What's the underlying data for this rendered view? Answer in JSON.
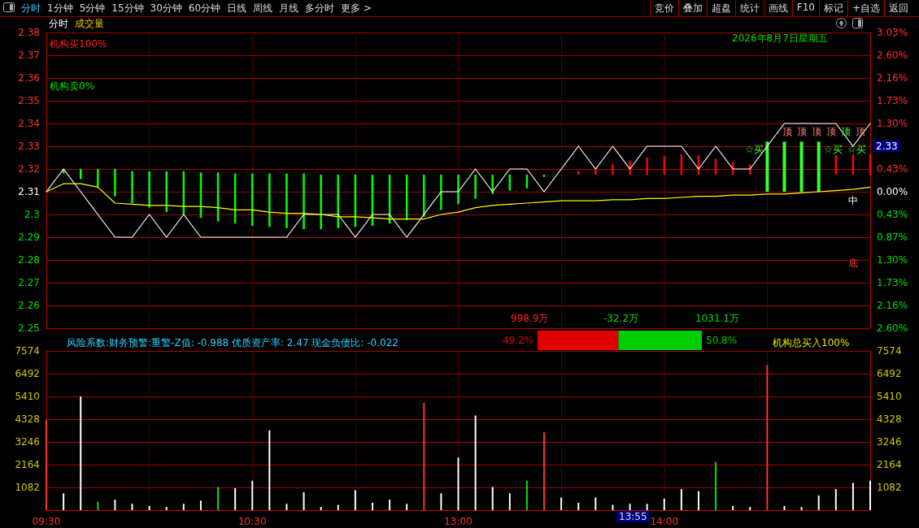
{
  "chart_data": [
    {
      "type": "line",
      "categories": [
        null,
        null,
        null,
        null,
        null,
        null,
        null,
        null,
        null,
        null,
        null,
        null,
        null,
        null,
        null,
        null,
        null,
        null,
        null,
        null,
        null,
        null,
        null,
        null,
        null,
        null,
        null,
        null,
        null,
        null,
        null,
        null,
        null,
        null,
        null,
        null,
        null,
        null,
        null,
        null,
        null,
        null,
        null,
        null,
        null,
        null,
        null,
        null,
        null
      ],
      "ylim": [
        2.25,
        2.38
      ],
      "yticks": [
        2.25,
        2.26,
        2.27,
        2.28,
        2.29,
        2.3,
        2.31,
        2.32,
        2.33,
        2.34,
        2.35,
        2.36,
        2.37,
        2.38
      ],
      "y2lim": [
        -2.6,
        3.03
      ],
      "y2ticks": [
        {
          "value": -2.6,
          "label": "2.60%"
        },
        {
          "value": -2.16,
          "label": "2.16%"
        },
        {
          "value": -1.73,
          "label": "1.73%"
        },
        {
          "value": -1.3,
          "label": "1.30%"
        },
        {
          "value": -0.87,
          "label": "0.87%"
        },
        {
          "value": -0.43,
          "label": "0.43%"
        },
        {
          "value": 0,
          "label": "0.00%"
        },
        {
          "value": 0.43,
          "label": "0.43%"
        },
        {
          "value": 0.87,
          "label": null
        },
        {
          "value": 1.3,
          "label": "1.30%"
        },
        {
          "value": 1.73,
          "label": "1.73%"
        },
        {
          "value": 2.16,
          "label": "2.16%"
        },
        {
          "value": 2.6,
          "label": "2.60%"
        },
        {
          "value": 3.03,
          "label": "3.03%"
        }
      ],
      "grid": true,
      "tick_labels": "y",
      "series": [
        {
          "type": "bar",
          "base": [
            null,
            2.318,
            2.3155,
            2.312,
            2.308,
            2.305,
            2.303,
            2.301,
            2.3,
            2.2985,
            2.297,
            2.296,
            2.295,
            2.2945,
            2.294,
            2.2935,
            2.2935,
            2.294,
            2.2945,
            2.295,
            2.296,
            2.2975,
            2.299,
            2.302,
            2.3045,
            2.307,
            2.309,
            2.3105,
            2.3115,
            2.3165,
            null,
            2.3175,
            2.3175,
            2.3175,
            2.3175,
            2.3175,
            2.3175,
            2.3175,
            2.3175,
            2.3175,
            2.3175,
            2.3175,
            null,
            null,
            null,
            null,
            2.3175,
            2.3175,
            2.3175
          ],
          "values": [
            null,
            0.002,
            0.0045,
            0.008,
            0.012,
            0.014,
            0.016,
            0.018,
            0.019,
            0.02,
            0.0215,
            0.022,
            0.023,
            0.0235,
            0.024,
            0.0245,
            0.024,
            0.0235,
            0.023,
            0.0225,
            0.0215,
            0.02,
            0.0185,
            0.0155,
            0.013,
            0.0105,
            0.0085,
            0.007,
            0.006,
            0.001,
            null,
            0.0015,
            0.003,
            0.0045,
            0.006,
            0.0075,
            0.008,
            0.009,
            0.0085,
            0.007,
            0.0055,
            0.0045,
            null,
            null,
            null,
            null,
            0.0085,
            0.009,
            0.009
          ],
          "colors": [
            "#00ff00",
            "#00ff00",
            "#00ff00",
            "#00ff00",
            "#00ff00",
            "#00ff00",
            "#00ff00",
            "#00ff00",
            "#00ff00",
            "#00ff00",
            "#00ff00",
            "#00ff00",
            "#00ff00",
            "#00ff00",
            "#00ff00",
            "#00ff00",
            "#00ff00",
            "#00ff00",
            "#00ff00",
            "#00ff00",
            "#00ff00",
            "#00ff00",
            "#00ff00",
            "#00ff00",
            "#00ff00",
            "#00ff00",
            "#00ff00",
            "#00ff00",
            "#00ff00",
            "#00ff00",
            "#ff0000",
            "#ff0000",
            "#ff0000",
            "#ff0000",
            "#ff0000",
            "#ff0000",
            "#ff0000",
            "#ff0000",
            "#ff0000",
            "#ff0000",
            "#ff0000",
            "#ff0000",
            "#ff0000",
            "#ff0000",
            "#ff0000",
            "#ff0000",
            "#ff0000",
            "#ff0000",
            "#ff0000"
          ]
        },
        {
          "type": "bar",
          "color": "#33ff33",
          "base": [
            null,
            null,
            null,
            null,
            null,
            null,
            null,
            null,
            null,
            null,
            null,
            null,
            null,
            null,
            null,
            null,
            null,
            null,
            null,
            null,
            null,
            null,
            null,
            null,
            null,
            null,
            null,
            null,
            null,
            null,
            null,
            null,
            null,
            null,
            null,
            null,
            null,
            null,
            null,
            null,
            null,
            null,
            2.31,
            2.31,
            2.31,
            2.31,
            null,
            null,
            null
          ],
          "values": [
            null,
            null,
            null,
            null,
            null,
            null,
            null,
            null,
            null,
            null,
            null,
            null,
            null,
            null,
            null,
            null,
            null,
            null,
            null,
            null,
            null,
            null,
            null,
            null,
            null,
            null,
            null,
            null,
            null,
            null,
            null,
            null,
            null,
            null,
            null,
            null,
            null,
            null,
            null,
            null,
            null,
            null,
            0.022,
            0.022,
            0.022,
            0.022,
            null,
            null,
            null
          ]
        },
        {
          "type": "line",
          "color": "#ffffff",
          "values": [
            2.31,
            2.32,
            2.31,
            2.3,
            2.29,
            2.29,
            2.3,
            2.29,
            2.3,
            2.29,
            2.29,
            2.29,
            2.29,
            2.29,
            2.29,
            2.3,
            2.3,
            2.3,
            2.29,
            2.3,
            2.3,
            2.29,
            2.3,
            2.31,
            2.31,
            2.32,
            2.31,
            2.32,
            2.32,
            2.31,
            2.32,
            2.33,
            2.32,
            2.33,
            2.32,
            2.33,
            2.33,
            2.33,
            2.32,
            2.33,
            2.32,
            2.32,
            2.33,
            2.34,
            2.34,
            2.34,
            2.34,
            2.33,
            2.34
          ]
        },
        {
          "type": "line",
          "color": "#ffff00",
          "values": [
            2.31,
            2.3135,
            2.3135,
            2.312,
            2.305,
            2.3045,
            2.304,
            2.304,
            2.3035,
            2.3035,
            2.303,
            2.302,
            2.302,
            2.301,
            2.3005,
            2.3005,
            2.3,
            2.299,
            2.299,
            2.2985,
            2.298,
            2.298,
            2.298,
            2.3,
            2.301,
            2.303,
            2.304,
            2.3045,
            2.305,
            2.3055,
            2.306,
            2.306,
            2.306,
            2.3065,
            2.3065,
            2.307,
            2.307,
            2.3075,
            2.308,
            2.308,
            2.3085,
            2.3085,
            2.309,
            2.309,
            2.3095,
            2.31,
            2.3105,
            2.311,
            2.312
          ]
        }
      ],
      "annotations": [
        "分时",
        "1分钟",
        "5分钟",
        "15分钟",
        "30分钟",
        "60分钟",
        "日线",
        "周线",
        "月线",
        "多分时",
        "更多 >",
        "竞价",
        "叠加",
        "超盘",
        "统计",
        "画线",
        "F10",
        "标记",
        "+自选",
        "返回",
        "分时",
        "成交量",
        "机构买100%",
        "机构卖0%",
        "2026年8月7日星期五",
        "顶",
        "顶",
        "顶",
        "顶",
        "顶",
        "顶",
        "☆买",
        "☆买",
        "☆买",
        "中",
        "底",
        "2.33"
      ]
    },
    {
      "type": "bar",
      "categories": [
        "09:30",
        null,
        null,
        null,
        null,
        null,
        null,
        null,
        null,
        null,
        null,
        null,
        "10:30",
        null,
        null,
        null,
        null,
        null,
        null,
        null,
        null,
        null,
        null,
        null,
        "13:00",
        null,
        null,
        null,
        null,
        null,
        null,
        null,
        null,
        null,
        null,
        null,
        "14:00",
        null,
        null,
        null,
        null,
        null,
        null,
        null,
        null,
        null,
        null,
        null,
        null
      ],
      "values": [
        4300,
        800,
        5410,
        400,
        500,
        300,
        200,
        150,
        300,
        450,
        1100,
        1050,
        1400,
        3800,
        300,
        850,
        150,
        250,
        950,
        350,
        500,
        300,
        5100,
        800,
        2500,
        4500,
        1100,
        800,
        1400,
        3700,
        600,
        350,
        600,
        250,
        300,
        300,
        550,
        1000,
        900,
        2300,
        200,
        150,
        6900,
        200,
        150,
        700,
        1000,
        1300,
        1400
      ],
      "colors": [
        "#ff3030",
        "#ffffff",
        "#ffffff",
        "#00e000",
        "#ffffff",
        "#ffffff",
        "#ffffff",
        "#ffffff",
        "#ffffff",
        "#ffffff",
        "#00e000",
        "#ffffff",
        "#ffffff",
        "#ffffff",
        "#ffffff",
        "#ffffff",
        "#ffffff",
        "#ffffff",
        "#ffffff",
        "#ffffff",
        "#ffffff",
        "#ffffff",
        "#ff3030",
        "#ffffff",
        "#ffffff",
        "#ffffff",
        "#ffffff",
        "#ffffff",
        "#00e000",
        "#ff3030",
        "#ffffff",
        "#ffffff",
        "#ffffff",
        "#ffffff",
        "#ffffff",
        "#ffffff",
        "#ffffff",
        "#ffffff",
        "#ffffff",
        "#00e000",
        "#ffffff",
        "#ffffff",
        "#ff3030",
        "#ffffff",
        "#ffffff",
        "#ffffff",
        "#ffffff",
        "#ffffff",
        "#ffffff"
      ],
      "ylim": [
        0,
        7574
      ],
      "yticks": [
        1082,
        2164,
        3246,
        4328,
        5410,
        6492,
        7574
      ],
      "y2lim": [
        0,
        7574
      ],
      "y2ticks": [
        1082,
        2164,
        3246,
        4328,
        5410,
        6492,
        7574
      ],
      "grid": true,
      "annotations": [
        "风险系数:财务预警:重警-Z值: -0.988 优质资产率: 2.47 现金负债比: -0.022",
        "机构总买入100%",
        "13:55"
      ]
    },
    {
      "type": "bar",
      "orientation": "horizontal",
      "stacked": true,
      "categories": [
        null
      ],
      "xlim": [
        0,
        100
      ],
      "tick_labels": false,
      "grid": false,
      "series": [
        {
          "color": "#e00000",
          "values": [
            49.2
          ],
          "value_labels": [
            "49.2%"
          ]
        },
        {
          "color": "#00cc00",
          "values": [
            50.8
          ],
          "value_labels": [
            "50.8%"
          ]
        }
      ],
      "annotations": [
        "998.9万",
        "-32.2万",
        "1031.1万"
      ]
    }
  ]
}
